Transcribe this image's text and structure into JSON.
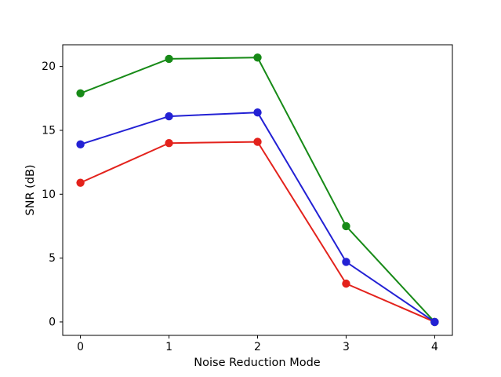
{
  "figure": {
    "background": "#ffffff",
    "axis_color": "#000000",
    "text_color": "#000000"
  },
  "chart_data": {
    "type": "line",
    "title": "",
    "xlabel": "Noise Reduction Mode",
    "ylabel": "SNR (dB)",
    "x": [
      0,
      1,
      2,
      3,
      4
    ],
    "series": [
      {
        "name": "red-line",
        "color": "#e3221c",
        "values": [
          10.9,
          14.0,
          14.1,
          3.0,
          0.0
        ]
      },
      {
        "name": "green-line",
        "color": "#178a17",
        "values": [
          17.9,
          20.6,
          20.7,
          7.5,
          0.0
        ]
      },
      {
        "name": "blue-line",
        "color": "#2321d4",
        "values": [
          13.9,
          16.1,
          16.4,
          4.7,
          0.0
        ]
      }
    ],
    "marker": "circle",
    "xticks": [
      0,
      1,
      2,
      3,
      4
    ],
    "yticks": [
      0,
      5,
      10,
      15,
      20
    ],
    "xlim": [
      -0.2,
      4.2
    ],
    "ylim": [
      -1.05,
      21.7
    ],
    "grid": false,
    "legend": "none"
  }
}
